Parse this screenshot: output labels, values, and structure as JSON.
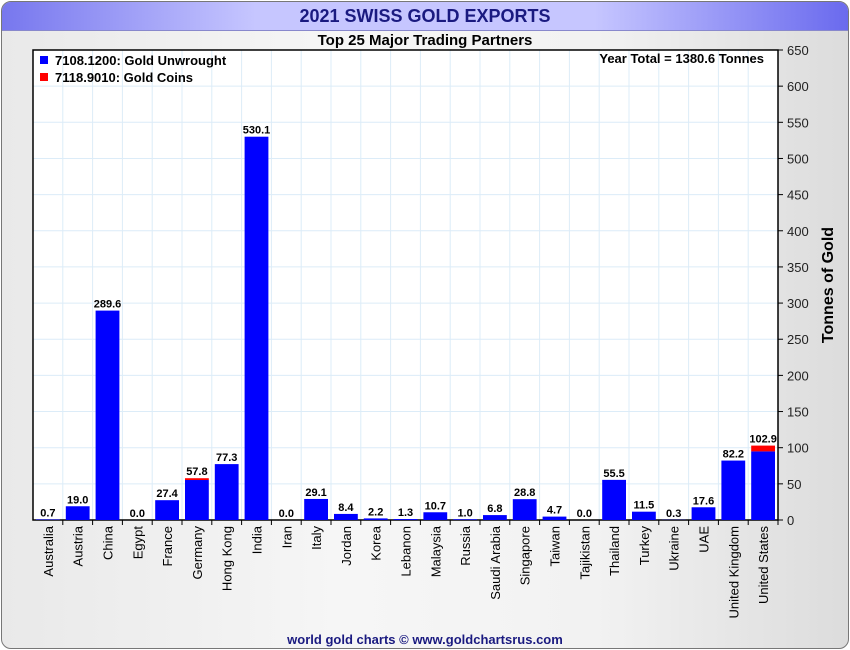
{
  "header": {
    "title": "2021 SWISS GOLD EXPORTS",
    "subtitle": "Top 25 Major Trading Partners"
  },
  "footer": "world gold charts © www.goldchartsrus.com",
  "chart_data": {
    "type": "bar",
    "stacked": true,
    "title": "Top 25 Major Trading Partners",
    "ylabel": "Tonnes of Gold",
    "xlabel": "",
    "ylim": [
      0,
      650
    ],
    "yticks": [
      0,
      50,
      100,
      150,
      200,
      250,
      300,
      350,
      400,
      450,
      500,
      550,
      600,
      650
    ],
    "annotation": "Year Total = 1380.6 Tonnes",
    "legend_position": "top-left",
    "categories": [
      "Australia",
      "Austria",
      "China",
      "Egypt",
      "France",
      "Germany",
      "Hong Kong",
      "India",
      "Iran",
      "Italy",
      "Jordan",
      "Korea",
      "Lebanon",
      "Malaysia",
      "Russia",
      "Saudi Arabia",
      "Singapore",
      "Taiwan",
      "Tajikistan",
      "Thailand",
      "Turkey",
      "Ukraine",
      "UAE",
      "United Kingdom",
      "United States"
    ],
    "series": [
      {
        "name": "7108.1200: Gold Unwrought",
        "color": "#0000ff",
        "values": [
          0.7,
          19.0,
          289.6,
          0.0,
          27.4,
          55.3,
          77.3,
          530.1,
          0.0,
          29.1,
          8.4,
          2.2,
          1.3,
          10.7,
          1.0,
          6.8,
          28.8,
          4.7,
          0.0,
          55.5,
          11.5,
          0.3,
          17.6,
          82.2,
          94.9
        ]
      },
      {
        "name": "7118.9010: Gold Coins",
        "color": "#ff0000",
        "values": [
          0,
          0,
          0,
          0,
          0,
          2.5,
          0,
          0,
          0,
          0,
          0,
          0,
          0,
          0,
          0,
          0,
          0,
          0,
          0,
          0,
          0,
          0,
          0,
          0,
          8.0
        ]
      }
    ],
    "totals": [
      "0.7",
      "19.0",
      "289.6",
      "0.0",
      "27.4",
      "57.8",
      "77.3",
      "530.1",
      "0.0",
      "29.1",
      "8.4",
      "2.2",
      "1.3",
      "10.7",
      "1.0",
      "6.8",
      "28.8",
      "4.7",
      "0.0",
      "55.5",
      "11.5",
      "0.3",
      "17.6",
      "82.2",
      "102.9"
    ]
  }
}
